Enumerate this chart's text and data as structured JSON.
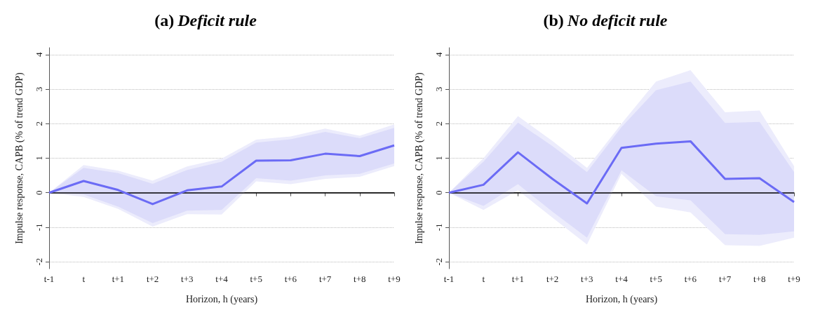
{
  "chart_data": [
    {
      "type": "line",
      "title": "(a) Deficit rule",
      "xlabel": "Horizon, h (years)",
      "ylabel": "Impulse response, CAPB (% of trend GDP)",
      "categories": [
        "t-1",
        "t",
        "t+1",
        "t+2",
        "t+3",
        "t+4",
        "t+5",
        "t+6",
        "t+7",
        "t+8",
        "t+9"
      ],
      "series": [
        {
          "type": "area",
          "color": "#ececfc",
          "values": [
            null,
            null,
            null,
            null,
            null,
            null,
            null,
            null,
            null,
            null,
            null
          ],
          "lower": [
            0,
            -0.12,
            -0.47,
            -0.98,
            -0.62,
            -0.63,
            0.33,
            0.25,
            0.4,
            0.46,
            0.77
          ],
          "upper": [
            0,
            0.8,
            0.64,
            0.35,
            0.76,
            0.99,
            1.54,
            1.63,
            1.86,
            1.65,
            1.98
          ]
        },
        {
          "type": "area",
          "color": "#dcdcfa",
          "values": [
            null,
            null,
            null,
            null,
            null,
            null,
            null,
            null,
            null,
            null,
            null
          ],
          "lower": [
            0,
            -0.05,
            -0.4,
            -0.88,
            -0.52,
            -0.5,
            0.42,
            0.35,
            0.5,
            0.55,
            0.85
          ],
          "upper": [
            0,
            0.72,
            0.57,
            0.26,
            0.66,
            0.9,
            1.45,
            1.55,
            1.76,
            1.58,
            1.88
          ]
        },
        {
          "color": "#6b6bf5",
          "values": [
            0,
            0.34,
            0.08,
            -0.33,
            0.07,
            0.18,
            0.93,
            0.94,
            1.13,
            1.06,
            1.37
          ]
        }
      ],
      "ylim": [
        -2.2,
        4.2
      ],
      "yticks": [
        -2,
        -1,
        0,
        1,
        2,
        3,
        4
      ],
      "grid": "y",
      "marker": "none",
      "line_style": "solid",
      "ref_lines": [
        {
          "axis": "y",
          "value": 0,
          "color": "#000000"
        }
      ]
    },
    {
      "type": "line",
      "title": "(b) No deficit rule",
      "xlabel": "Horizon, h (years)",
      "ylabel": "Impulse response, CAPB (% of trend GDP)",
      "categories": [
        "t-1",
        "t",
        "t+1",
        "t+2",
        "t+3",
        "t+4",
        "t+5",
        "t+6",
        "t+7",
        "t+8",
        "t+9"
      ],
      "series": [
        {
          "type": "area",
          "color": "#ececfc",
          "values": [
            null,
            null,
            null,
            null,
            null,
            null,
            null,
            null,
            null,
            null,
            null
          ],
          "lower": [
            0,
            -0.5,
            0.07,
            -0.72,
            -1.5,
            0.55,
            -0.4,
            -0.57,
            -1.52,
            -1.54,
            -1.3
          ],
          "upper": [
            0,
            1.0,
            2.22,
            1.5,
            0.72,
            2.0,
            3.22,
            3.55,
            2.33,
            2.38,
            0.77
          ]
        },
        {
          "type": "area",
          "color": "#dcdcfa",
          "values": [
            null,
            null,
            null,
            null,
            null,
            null,
            null,
            null,
            null,
            null,
            null
          ],
          "lower": [
            0,
            -0.38,
            0.25,
            -0.55,
            -1.3,
            0.65,
            -0.1,
            -0.22,
            -1.2,
            -1.22,
            -1.12
          ],
          "upper": [
            0,
            0.9,
            2.03,
            1.35,
            0.6,
            1.9,
            2.97,
            3.22,
            2.02,
            2.05,
            0.6
          ]
        },
        {
          "color": "#6b6bf5",
          "values": [
            0,
            0.23,
            1.17,
            0.4,
            -0.31,
            1.3,
            1.42,
            1.49,
            0.4,
            0.42,
            -0.27
          ]
        }
      ],
      "ylim": [
        -2.2,
        4.2
      ],
      "yticks": [
        -2,
        -1,
        0,
        1,
        2,
        3,
        4
      ],
      "grid": "y",
      "marker": "none",
      "line_style": "solid",
      "ref_lines": [
        {
          "axis": "y",
          "value": 0,
          "color": "#000000"
        }
      ]
    }
  ]
}
